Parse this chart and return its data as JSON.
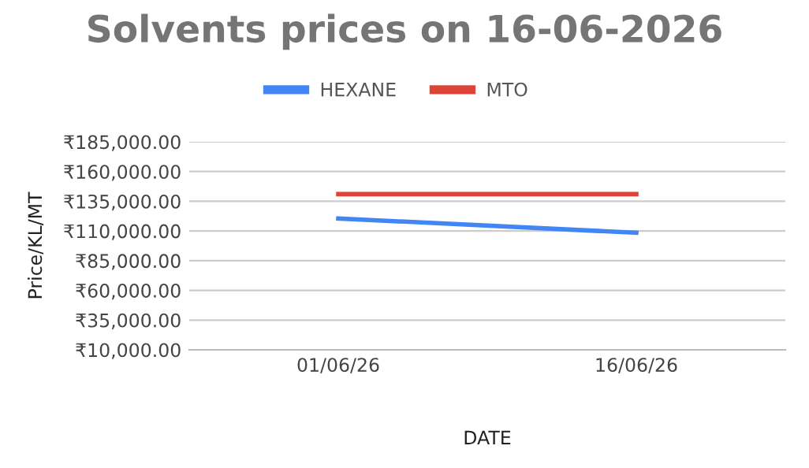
{
  "chart_data": {
    "type": "line",
    "title": "Solvents prices on 16-06-2026",
    "xlabel": "DATE",
    "ylabel": "Price/KL/MT",
    "categories": [
      "01/06/26",
      "16/06/26"
    ],
    "series": [
      {
        "name": "HEXANE",
        "color": "#4285f4",
        "values": [
          120500,
          108500
        ]
      },
      {
        "name": "MTO",
        "color": "#db4437",
        "values": [
          141000,
          141000
        ]
      }
    ],
    "ylim": [
      10000,
      185000
    ],
    "yticks": [
      {
        "value": 10000,
        "label": "₹10,000.00"
      },
      {
        "value": 35000,
        "label": "₹35,000.00"
      },
      {
        "value": 60000,
        "label": "₹60,000.00"
      },
      {
        "value": 85000,
        "label": "₹85,000.00"
      },
      {
        "value": 110000,
        "label": "₹110,000.00"
      },
      {
        "value": 135000,
        "label": "₹135,000.00"
      },
      {
        "value": 160000,
        "label": "₹160,000.00"
      },
      {
        "value": 185000,
        "label": "₹185,000.00"
      }
    ],
    "grid": "y",
    "legend": "top",
    "marker": "none",
    "line_style": "solid"
  }
}
